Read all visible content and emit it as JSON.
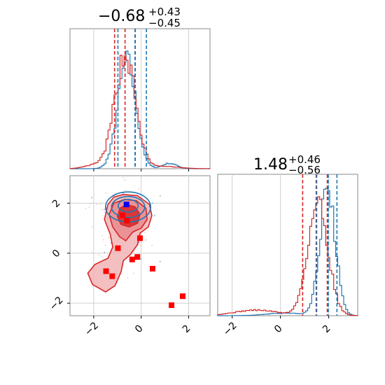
{
  "chart_data": {
    "type": "corner",
    "parameters": [
      {
        "title_main": "−0.68",
        "title_sup": "+0.43",
        "title_sub": "−0.45",
        "xlim": [
          -3.0,
          2.9
        ],
        "xticks": [
          -2,
          0,
          2
        ],
        "xtick_labels": [
          "−2",
          "0",
          "2"
        ]
      },
      {
        "title_main": "1.48",
        "title_sup": "+0.46",
        "title_sub": "−0.56",
        "xlim": [
          -2.6,
          3.2
        ],
        "xticks": [
          -2,
          0,
          2
        ],
        "xtick_labels": [
          "−2",
          "0",
          "2"
        ]
      }
    ],
    "joint": {
      "xlim": [
        -3.0,
        2.9
      ],
      "ylim": [
        -2.5,
        3.1
      ],
      "yticks": [
        -2,
        0,
        2
      ],
      "ytick_labels": [
        "−2",
        "0",
        "2"
      ]
    },
    "series": [
      {
        "color": "#1f77b4",
        "marginal_1_quantiles": [
          -0.98,
          -0.26,
          0.22
        ],
        "marginal_2_quantiles": [
          1.5,
          1.98,
          2.34
        ],
        "marker": [
          -0.62,
          1.95
        ]
      },
      {
        "color": "#d62728",
        "marginal_1_quantiles": [
          -1.12,
          -0.68,
          -0.25
        ],
        "marginal_2_quantiles": [
          0.92,
          1.48,
          1.94
        ]
      }
    ],
    "red_points": [
      [
        -0.78,
        1.52
      ],
      [
        -0.98,
        0.2
      ],
      [
        -0.05,
        0.6
      ],
      [
        -0.38,
        -0.25
      ],
      [
        -0.16,
        -0.15
      ],
      [
        0.48,
        -0.62
      ],
      [
        -1.48,
        -0.72
      ],
      [
        -1.22,
        -0.92
      ],
      [
        1.28,
        -2.08
      ],
      [
        1.75,
        -1.72
      ],
      [
        -0.6,
        1.3
      ]
    ],
    "blue_marker": [
      -0.62,
      1.95
    ]
  }
}
